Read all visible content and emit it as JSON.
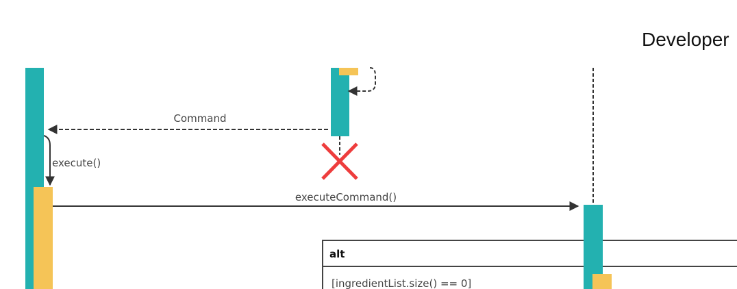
{
  "participants": {
    "developer_title": "Developer"
  },
  "messages": {
    "command_label": "Command",
    "execute_label": "execute()",
    "execute_command_label": "executeCommand()"
  },
  "alt_frame": {
    "operator": "alt",
    "guard": "[ingredientList.size() == 0]"
  },
  "colors": {
    "lifeline_bar": "#23b1b0",
    "activation": "#f5c457",
    "destroy_mark": "#ee3d3d",
    "line": "#333333"
  }
}
